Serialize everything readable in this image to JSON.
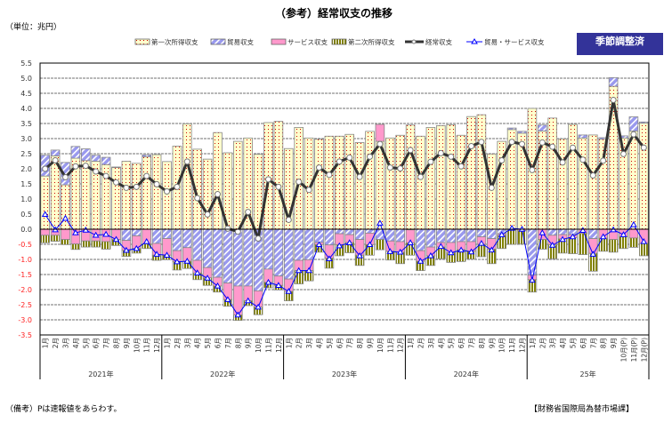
{
  "title": "（参考）経常収支の推移",
  "unit": "（単位：兆円）",
  "badge": "季節調整済",
  "note": "（備考）Pは速報値をあらわす。",
  "source": "【財務省国際局為替市場課】",
  "chart_data": {
    "type": "bar",
    "stacked": true,
    "title": "（参考）経常収支の推移",
    "ylabel": "（単位：兆円）",
    "ylim": [
      -3.5,
      5.5
    ],
    "ytick_step": 0.5,
    "yticks": [
      "5.5",
      "5.0",
      "4.5",
      "4.0",
      "3.5",
      "3.0",
      "2.5",
      "2.0",
      "1.5",
      "1.0",
      "0.5",
      "0.0",
      "-0.5",
      "-1.0",
      "-1.5",
      "-2.0",
      "-2.5",
      "-3.0",
      "-3.5"
    ],
    "grid": true,
    "legend_position": "top",
    "years": [
      "2021年",
      "2022年",
      "2023年",
      "2024年",
      "25年"
    ],
    "months": [
      "1月",
      "2月",
      "3月",
      "4月",
      "5月",
      "6月",
      "7月",
      "8月",
      "9月",
      "10月",
      "11月",
      "12月",
      "1月",
      "2月",
      "3月",
      "4月",
      "5月",
      "6月",
      "7月",
      "8月",
      "9月",
      "10月",
      "11月",
      "12月",
      "1月",
      "2月",
      "3月",
      "4月",
      "5月",
      "6月",
      "7月",
      "8月",
      "9月",
      "10月",
      "11月",
      "12月",
      "1月",
      "2月",
      "3月",
      "4月",
      "5月",
      "6月",
      "7月",
      "8月",
      "9月",
      "10月",
      "11月",
      "12月",
      "1月",
      "2月",
      "3月",
      "4月",
      "5月",
      "6月",
      "7月",
      "8月",
      "9月",
      "10月(P)",
      "11月(P)",
      "12月(P)"
    ],
    "series": [
      {
        "name": "第一次所得収支",
        "kind": "bar",
        "color": "#ffffcc",
        "values": [
          1.76,
          2.43,
          1.47,
          2.35,
          2.27,
          2.25,
          2.14,
          2.04,
          2.25,
          2.18,
          2.4,
          2.47,
          2.24,
          2.75,
          3.49,
          2.65,
          2.32,
          3.2,
          2.53,
          2.91,
          3.02,
          2.48,
          3.53,
          3.57,
          2.67,
          3.37,
          3.02,
          2.98,
          3.08,
          3.08,
          3.14,
          2.87,
          3.24,
          2.91,
          3.02,
          3.11,
          3.45,
          3.08,
          3.37,
          3.43,
          3.46,
          3.11,
          3.73,
          3.79,
          2.49,
          2.91,
          3.3,
          3.18,
          4.0,
          3.25,
          3.68,
          2.99,
          3.47,
          3.02,
          3.12,
          2.98,
          4.73,
          3.02,
          3.25,
          3.51
        ]
      },
      {
        "name": "貿易収支",
        "kind": "bar",
        "color": "#9999ee",
        "values": [
          0.69,
          0.19,
          0.74,
          0.39,
          0.39,
          0.2,
          0.24,
          0.02,
          -0.37,
          -0.22,
          0.06,
          -0.47,
          -0.31,
          -0.71,
          -0.61,
          -1.03,
          -1.27,
          -1.59,
          -1.78,
          -1.88,
          -1.88,
          -2.04,
          -1.32,
          -1.55,
          -1.65,
          -1.03,
          -1.01,
          -0.44,
          -0.52,
          -0.15,
          -0.18,
          -0.34,
          -0.13,
          -0.34,
          -0.39,
          -0.41,
          -0.02,
          -0.71,
          -0.59,
          -0.44,
          -0.44,
          -0.41,
          -0.41,
          -0.25,
          -0.31,
          -0.15,
          0.05,
          0.06,
          -1.52,
          0.2,
          -0.2,
          -0.18,
          -0.18,
          0.1,
          -0.31,
          0.05,
          0.29,
          0.07,
          0.47,
          0.04
        ]
      },
      {
        "name": "サービス収支",
        "kind": "bar",
        "color": "#ff99cc",
        "values": [
          -0.2,
          -0.2,
          -0.34,
          -0.49,
          -0.39,
          -0.39,
          -0.41,
          -0.34,
          -0.33,
          -0.42,
          -0.49,
          -0.39,
          -0.55,
          -0.37,
          -0.45,
          -0.42,
          -0.34,
          -0.29,
          -0.55,
          -0.96,
          -0.49,
          -0.54,
          -0.44,
          -0.31,
          -0.41,
          -0.34,
          -0.36,
          -0.07,
          -0.44,
          -0.36,
          -0.26,
          -0.52,
          -0.38,
          0.56,
          -0.34,
          -0.35,
          -0.43,
          -0.35,
          -0.29,
          -0.15,
          -0.34,
          -0.27,
          -0.32,
          -0.25,
          -0.35,
          -0.05,
          -0.03,
          -0.05,
          -0.15,
          -0.34,
          -0.31,
          -0.14,
          -0.1,
          -0.14,
          -0.49,
          -0.3,
          -0.34,
          -0.25,
          -0.29,
          -0.47
        ]
      },
      {
        "name": "第二次所得収支",
        "kind": "bar",
        "color": "#808000",
        "values": [
          -0.25,
          -0.2,
          -0.17,
          -0.18,
          -0.2,
          -0.2,
          -0.25,
          -0.2,
          -0.2,
          -0.15,
          -0.15,
          -0.17,
          -0.15,
          -0.27,
          -0.24,
          -0.22,
          -0.25,
          -0.2,
          -0.22,
          -0.18,
          -0.16,
          -0.25,
          -0.18,
          -0.15,
          -0.31,
          -0.44,
          -0.34,
          -0.25,
          -0.33,
          -0.37,
          -0.34,
          -0.34,
          -0.35,
          -0.34,
          -0.29,
          -0.38,
          -0.41,
          -0.31,
          -0.32,
          -0.39,
          -0.32,
          -0.39,
          -0.26,
          -0.41,
          -0.48,
          -0.44,
          -0.47,
          -0.44,
          -0.41,
          -0.32,
          -0.47,
          -0.47,
          -0.53,
          -0.7,
          -0.59,
          -0.43,
          -0.42,
          -0.39,
          -0.31,
          -0.41
        ]
      },
      {
        "name": "経常収支",
        "kind": "line",
        "color": "#333333",
        "values": [
          2.0,
          2.28,
          1.72,
          2.08,
          2.1,
          1.91,
          1.76,
          1.55,
          1.37,
          1.4,
          1.76,
          1.49,
          1.25,
          1.4,
          2.24,
          1.03,
          0.49,
          1.16,
          0.02,
          -0.08,
          0.57,
          -0.31,
          1.65,
          1.4,
          0.31,
          1.57,
          1.3,
          2.04,
          1.8,
          2.24,
          2.37,
          1.73,
          2.4,
          2.82,
          2.04,
          2.01,
          2.62,
          1.73,
          2.23,
          2.52,
          2.4,
          2.08,
          2.75,
          2.89,
          1.37,
          2.28,
          2.89,
          2.82,
          1.96,
          2.87,
          2.73,
          2.21,
          2.7,
          2.3,
          1.78,
          2.27,
          4.28,
          2.49,
          3.14,
          2.7
        ]
      },
      {
        "name": "貿易・サービス収支",
        "kind": "line",
        "color": "#0000ff",
        "values": [
          0.49,
          -0.02,
          0.36,
          -0.12,
          -0.03,
          -0.2,
          -0.17,
          -0.34,
          -0.7,
          -0.64,
          -0.41,
          -0.83,
          -0.86,
          -1.08,
          -1.06,
          -1.45,
          -1.62,
          -1.88,
          -2.33,
          -2.84,
          -2.37,
          -2.58,
          -1.76,
          -1.86,
          -2.06,
          -1.37,
          -1.37,
          -0.51,
          -0.98,
          -0.55,
          -0.45,
          -0.88,
          -0.51,
          0.2,
          -0.74,
          -0.76,
          -0.45,
          -1.06,
          -0.88,
          -0.57,
          -0.78,
          -0.69,
          -0.75,
          -0.47,
          -0.69,
          -0.18,
          0.03,
          0.0,
          -1.69,
          -0.12,
          -0.53,
          -0.34,
          -0.25,
          -0.04,
          -0.83,
          -0.25,
          -0.02,
          -0.18,
          0.15,
          -0.41
        ]
      }
    ]
  }
}
